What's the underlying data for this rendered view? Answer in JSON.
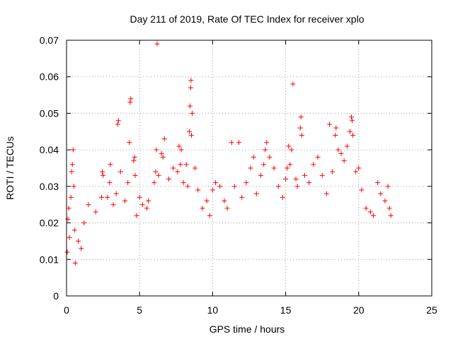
{
  "chart_data": {
    "type": "scatter",
    "title": "Day 211 of 2019, Rate Of TEC Index for receiver xplo",
    "xlabel": "GPS time / hours",
    "ylabel": "ROTI / TECUs",
    "xlim": [
      0,
      25
    ],
    "ylim": [
      0,
      0.07
    ],
    "xticks": [
      0,
      5,
      10,
      15,
      20,
      25
    ],
    "xtick_labels": [
      "0",
      "5",
      "10",
      "15",
      "20",
      "25"
    ],
    "yticks": [
      0,
      0.01,
      0.02,
      0.03,
      0.04,
      0.05,
      0.06,
      0.07
    ],
    "ytick_labels": [
      "0",
      "0.01",
      "0.02",
      "0.03",
      "0.04",
      "0.05",
      "0.06",
      "0.07"
    ],
    "grid": true,
    "marker": "plus",
    "color": "#ff0000",
    "data_range": {
      "x_min": 0.0,
      "x_max": 22.2
    },
    "series": [
      {
        "name": "ROTI",
        "points": [
          [
            0.05,
            0.012
          ],
          [
            0.1,
            0.021
          ],
          [
            0.15,
            0.024
          ],
          [
            0.2,
            0.016
          ],
          [
            0.3,
            0.027
          ],
          [
            0.35,
            0.034
          ],
          [
            0.4,
            0.036
          ],
          [
            0.45,
            0.04
          ],
          [
            0.5,
            0.03
          ],
          [
            0.55,
            0.018
          ],
          [
            0.6,
            0.009
          ],
          [
            0.8,
            0.015
          ],
          [
            1.0,
            0.013
          ],
          [
            1.2,
            0.02
          ],
          [
            1.5,
            0.025
          ],
          [
            2.0,
            0.023
          ],
          [
            2.4,
            0.027
          ],
          [
            2.45,
            0.034
          ],
          [
            2.5,
            0.033
          ],
          [
            2.8,
            0.027
          ],
          [
            2.95,
            0.031
          ],
          [
            3.0,
            0.036
          ],
          [
            3.2,
            0.025
          ],
          [
            3.4,
            0.028
          ],
          [
            3.5,
            0.047
          ],
          [
            3.55,
            0.048
          ],
          [
            3.7,
            0.034
          ],
          [
            4.0,
            0.026
          ],
          [
            4.2,
            0.031
          ],
          [
            4.3,
            0.042
          ],
          [
            4.35,
            0.053
          ],
          [
            4.4,
            0.054
          ],
          [
            4.6,
            0.037
          ],
          [
            4.65,
            0.038
          ],
          [
            4.7,
            0.033
          ],
          [
            4.8,
            0.022
          ],
          [
            5.0,
            0.027
          ],
          [
            5.2,
            0.025
          ],
          [
            5.5,
            0.024
          ],
          [
            5.6,
            0.026
          ],
          [
            6.0,
            0.031
          ],
          [
            6.1,
            0.034
          ],
          [
            6.15,
            0.04
          ],
          [
            6.2,
            0.069
          ],
          [
            6.3,
            0.033
          ],
          [
            6.5,
            0.039
          ],
          [
            6.6,
            0.038
          ],
          [
            6.7,
            0.043
          ],
          [
            7.0,
            0.032
          ],
          [
            7.3,
            0.035
          ],
          [
            7.6,
            0.034
          ],
          [
            7.7,
            0.041
          ],
          [
            7.8,
            0.036
          ],
          [
            7.85,
            0.04
          ],
          [
            8.0,
            0.031
          ],
          [
            8.2,
            0.036
          ],
          [
            8.3,
            0.03
          ],
          [
            8.4,
            0.045
          ],
          [
            8.45,
            0.052
          ],
          [
            8.5,
            0.057
          ],
          [
            8.52,
            0.059
          ],
          [
            8.55,
            0.044
          ],
          [
            8.6,
            0.05
          ],
          [
            8.8,
            0.035
          ],
          [
            9.0,
            0.029
          ],
          [
            9.3,
            0.024
          ],
          [
            9.6,
            0.026
          ],
          [
            9.8,
            0.022
          ],
          [
            10.0,
            0.029
          ],
          [
            10.2,
            0.031
          ],
          [
            10.5,
            0.03
          ],
          [
            10.8,
            0.026
          ],
          [
            11.0,
            0.024
          ],
          [
            11.3,
            0.042
          ],
          [
            11.5,
            0.03
          ],
          [
            11.8,
            0.042
          ],
          [
            12.0,
            0.027
          ],
          [
            12.3,
            0.031
          ],
          [
            12.6,
            0.035
          ],
          [
            12.8,
            0.038
          ],
          [
            13.0,
            0.028
          ],
          [
            13.3,
            0.033
          ],
          [
            13.5,
            0.036
          ],
          [
            13.6,
            0.04
          ],
          [
            13.7,
            0.042
          ],
          [
            13.9,
            0.038
          ],
          [
            14.2,
            0.035
          ],
          [
            14.5,
            0.03
          ],
          [
            14.8,
            0.027
          ],
          [
            15.0,
            0.032
          ],
          [
            15.1,
            0.035
          ],
          [
            15.2,
            0.041
          ],
          [
            15.3,
            0.036
          ],
          [
            15.4,
            0.04
          ],
          [
            15.5,
            0.058
          ],
          [
            15.7,
            0.032
          ],
          [
            15.8,
            0.03
          ],
          [
            16.0,
            0.046
          ],
          [
            16.05,
            0.049
          ],
          [
            16.1,
            0.044
          ],
          [
            16.3,
            0.033
          ],
          [
            16.6,
            0.031
          ],
          [
            16.9,
            0.036
          ],
          [
            17.2,
            0.038
          ],
          [
            17.5,
            0.033
          ],
          [
            17.8,
            0.028
          ],
          [
            18.0,
            0.047
          ],
          [
            18.2,
            0.034
          ],
          [
            18.4,
            0.044
          ],
          [
            18.45,
            0.046
          ],
          [
            18.6,
            0.04
          ],
          [
            18.8,
            0.039
          ],
          [
            19.0,
            0.037
          ],
          [
            19.2,
            0.041
          ],
          [
            19.4,
            0.045
          ],
          [
            19.5,
            0.049
          ],
          [
            19.55,
            0.048
          ],
          [
            19.6,
            0.044
          ],
          [
            19.8,
            0.034
          ],
          [
            20.0,
            0.035
          ],
          [
            20.2,
            0.029
          ],
          [
            20.5,
            0.024
          ],
          [
            20.8,
            0.023
          ],
          [
            21.0,
            0.022
          ],
          [
            21.3,
            0.031
          ],
          [
            21.5,
            0.028
          ],
          [
            21.8,
            0.026
          ],
          [
            22.0,
            0.03
          ],
          [
            22.1,
            0.024
          ],
          [
            22.2,
            0.022
          ]
        ]
      }
    ]
  }
}
